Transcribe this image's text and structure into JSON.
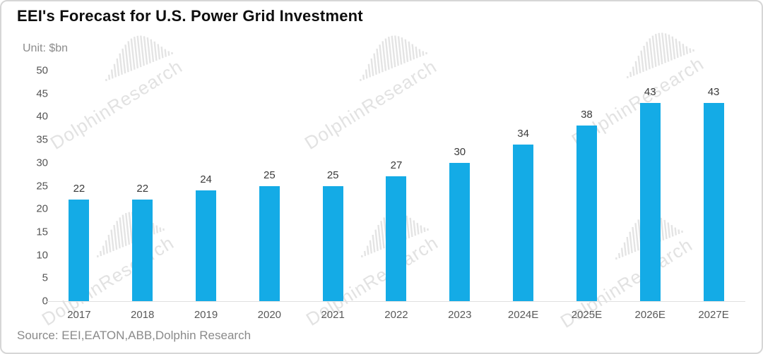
{
  "header": {
    "title": "EEI's Forecast for U.S. Power Grid Investment",
    "unit_label": "Unit: $bn"
  },
  "watermark": {
    "text": "DolphinResearch",
    "logo_icon": "dolphin-soundwave-icon"
  },
  "footer": {
    "source_text": "Source: EEI,EATON,ABB,Dolphin Research"
  },
  "chart_data": {
    "type": "bar",
    "title": "EEI's Forecast for U.S. Power Grid Investment",
    "unit": "$bn",
    "categories": [
      "2017",
      "2018",
      "2019",
      "2020",
      "2021",
      "2022",
      "2023",
      "2024E",
      "2025E",
      "2026E",
      "2027E"
    ],
    "values": [
      22,
      22,
      24,
      25,
      25,
      27,
      30,
      34,
      38,
      43,
      43
    ],
    "xlabel": "",
    "ylabel": "",
    "ylim": [
      0,
      50
    ],
    "yticks": [
      0,
      5,
      10,
      15,
      20,
      25,
      30,
      35,
      40,
      45,
      50
    ],
    "grid": false,
    "legend": "none",
    "data_labels": true,
    "data_label_position": "above-bar",
    "bar_color": "#14ABE6",
    "axis_line_color": "#e0e0e0",
    "tick_label_color": "#595959",
    "data_label_color": "#3a3a3a"
  }
}
